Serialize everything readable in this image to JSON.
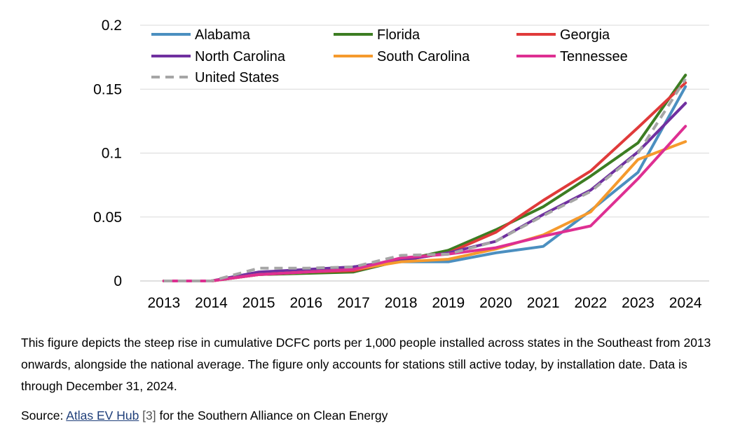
{
  "chart_data": {
    "type": "line",
    "x": [
      "2013",
      "2014",
      "2015",
      "2016",
      "2017",
      "2018",
      "2019",
      "2020",
      "2021",
      "2022",
      "2023",
      "2024"
    ],
    "ylim": [
      0,
      0.2
    ],
    "yticks": [
      0,
      0.05,
      0.1,
      0.15,
      0.2
    ],
    "ytick_labels": [
      "0",
      "0.05",
      "0.1",
      "0.15",
      "0.2"
    ],
    "grid": true,
    "legend_position": "top",
    "title": "",
    "xlabel": "",
    "ylabel": "",
    "series": [
      {
        "name": "Alabama",
        "color": "#4b8fc0",
        "dashed": false,
        "values": [
          0,
          0,
          0.006,
          0.008,
          0.011,
          0.015,
          0.015,
          0.022,
          0.027,
          0.055,
          0.085,
          0.152
        ]
      },
      {
        "name": "Florida",
        "color": "#3c7d22",
        "dashed": false,
        "values": [
          0,
          0,
          0.005,
          0.006,
          0.007,
          0.016,
          0.024,
          0.04,
          0.058,
          0.082,
          0.108,
          0.161
        ]
      },
      {
        "name": "Georgia",
        "color": "#e03a3a",
        "dashed": false,
        "values": [
          0,
          0,
          0.005,
          0.007,
          0.008,
          0.016,
          0.022,
          0.038,
          0.063,
          0.086,
          0.12,
          0.155
        ]
      },
      {
        "name": "North Carolina",
        "color": "#7030a0",
        "dashed": false,
        "values": [
          0,
          0,
          0.007,
          0.009,
          0.011,
          0.016,
          0.022,
          0.031,
          0.052,
          0.071,
          0.101,
          0.139
        ]
      },
      {
        "name": "South Carolina",
        "color": "#f59a2d",
        "dashed": false,
        "values": [
          0,
          0,
          0.005,
          0.007,
          0.009,
          0.015,
          0.017,
          0.025,
          0.036,
          0.054,
          0.095,
          0.109
        ]
      },
      {
        "name": "Tennessee",
        "color": "#de2f92",
        "dashed": false,
        "values": [
          0,
          0,
          0.005,
          0.007,
          0.009,
          0.018,
          0.021,
          0.026,
          0.035,
          0.043,
          0.08,
          0.121
        ]
      },
      {
        "name": "United States",
        "color": "#a6a6a6",
        "dashed": true,
        "values": [
          0,
          0,
          0.01,
          0.01,
          0.011,
          0.02,
          0.021,
          0.031,
          0.051,
          0.07,
          0.1,
          0.158
        ]
      }
    ]
  },
  "caption": {
    "text": "This figure depicts the steep rise in cumulative DCFC ports per 1,000 people installed across states in the Southeast from 2013 onwards, alongside the national average. The figure only accounts for stations still active today, by installation date. Data is through December 31, 2024."
  },
  "source": {
    "label": "Source: ",
    "link_text": "Atlas EV Hub",
    "ref": " [3]",
    "rest": " for the Southern Alliance on Clean Energy"
  }
}
